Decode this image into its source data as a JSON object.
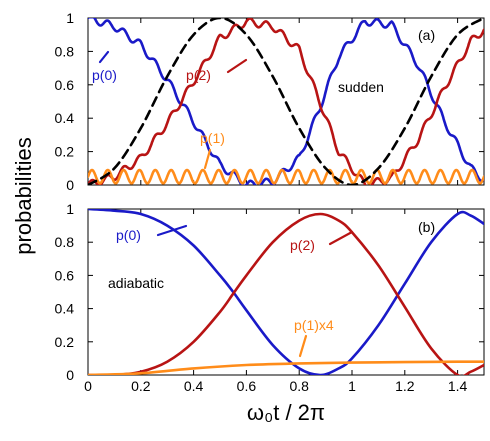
{
  "figure": {
    "ylabel": "probabilities",
    "xlabel": "ω₀t / 2π"
  },
  "colors": {
    "p0": "#1a1ac8",
    "p2": "#b81414",
    "p1": "#ff8c1a",
    "dashed": "#000000"
  },
  "chart_data": [
    {
      "type": "line",
      "panel_label": "(a)",
      "regime_label": "sudden",
      "xlim": [
        0,
        1.5
      ],
      "ylim": [
        0,
        1
      ],
      "yticks": [
        "0",
        "0.2",
        "0.4",
        "0.6",
        "0.8",
        "1"
      ],
      "xticks": [
        "0",
        "0.2",
        "0.4",
        "0.6",
        "0.8",
        "1",
        "1.2",
        "1.4"
      ],
      "grid": false,
      "series": [
        {
          "name": "p(0)",
          "color": "#1a1ac8",
          "x": [
            0,
            0.1,
            0.2,
            0.3,
            0.4,
            0.5,
            0.6,
            0.7,
            0.8,
            0.875,
            0.95,
            1.05,
            1.15,
            1.25,
            1.35,
            1.45,
            1.5
          ],
          "y": [
            1.0,
            0.95,
            0.84,
            0.63,
            0.38,
            0.12,
            0.0,
            0.02,
            0.16,
            0.45,
            0.77,
            0.98,
            0.96,
            0.72,
            0.38,
            0.1,
            0.03
          ]
        },
        {
          "name": "p(2)",
          "color": "#b81414",
          "x": [
            0,
            0.1,
            0.2,
            0.3,
            0.4,
            0.5,
            0.6,
            0.7,
            0.8,
            0.875,
            0.95,
            1.05,
            1.15,
            1.25,
            1.35,
            1.45,
            1.5
          ],
          "y": [
            0.0,
            0.05,
            0.16,
            0.37,
            0.62,
            0.88,
            0.98,
            0.95,
            0.81,
            0.51,
            0.2,
            0.0,
            0.04,
            0.27,
            0.58,
            0.86,
            0.93
          ]
        },
        {
          "name": "p(1)",
          "color": "#ff8c1a",
          "mean": 0.05,
          "amplitude": 0.04,
          "oscillation_count": 25
        },
        {
          "name": "",
          "style": "dashed",
          "color": "#000000",
          "x": [
            0,
            0.1,
            0.2,
            0.3,
            0.4,
            0.5,
            0.6,
            0.7,
            0.8,
            0.9,
            1.0,
            1.1,
            1.2,
            1.3,
            1.4,
            1.5
          ],
          "y": [
            0.0,
            0.1,
            0.34,
            0.65,
            0.9,
            1.0,
            0.9,
            0.65,
            0.34,
            0.1,
            0.0,
            0.1,
            0.34,
            0.65,
            0.9,
            1.0
          ]
        }
      ],
      "annotations": [
        "p(0)",
        "p(2)",
        "p(1)"
      ]
    },
    {
      "type": "line",
      "panel_label": "(b)",
      "regime_label": "adiabatic",
      "xlim": [
        0,
        1.5
      ],
      "ylim": [
        0,
        1
      ],
      "yticks": [
        "0",
        "0.2",
        "0.4",
        "0.6",
        "0.8",
        "1"
      ],
      "xticks": [
        "0",
        "0.2",
        "0.4",
        "0.6",
        "0.8",
        "1",
        "1.2",
        "1.4"
      ],
      "grid": false,
      "series": [
        {
          "name": "p(0)",
          "color": "#1a1ac8",
          "x": [
            0,
            0.1,
            0.2,
            0.3,
            0.4,
            0.5,
            0.55,
            0.6,
            0.7,
            0.8,
            0.88,
            0.95,
            1.0,
            1.1,
            1.2,
            1.3,
            1.4,
            1.45,
            1.5
          ],
          "y": [
            1.0,
            0.99,
            0.97,
            0.9,
            0.78,
            0.6,
            0.5,
            0.39,
            0.18,
            0.04,
            0.0,
            0.04,
            0.1,
            0.3,
            0.55,
            0.8,
            0.97,
            0.96,
            0.91
          ]
        },
        {
          "name": "p(2)",
          "color": "#b81414",
          "x": [
            0,
            0.1,
            0.2,
            0.3,
            0.4,
            0.5,
            0.55,
            0.6,
            0.7,
            0.8,
            0.88,
            0.95,
            1.0,
            1.1,
            1.2,
            1.3,
            1.4,
            1.45,
            1.5
          ],
          "y": [
            0.0,
            0.0,
            0.02,
            0.08,
            0.2,
            0.38,
            0.49,
            0.6,
            0.8,
            0.93,
            0.97,
            0.93,
            0.86,
            0.66,
            0.41,
            0.16,
            0.0,
            0.02,
            0.06
          ]
        },
        {
          "name": "p(1)x4",
          "color": "#ff8c1a",
          "x": [
            0,
            0.2,
            0.4,
            0.6,
            0.8,
            1.0,
            1.2,
            1.4,
            1.5
          ],
          "y": [
            0.0,
            0.01,
            0.04,
            0.06,
            0.07,
            0.075,
            0.078,
            0.08,
            0.08
          ]
        }
      ],
      "annotations": [
        "p(0)",
        "p(2)",
        "p(1)x4"
      ]
    }
  ]
}
